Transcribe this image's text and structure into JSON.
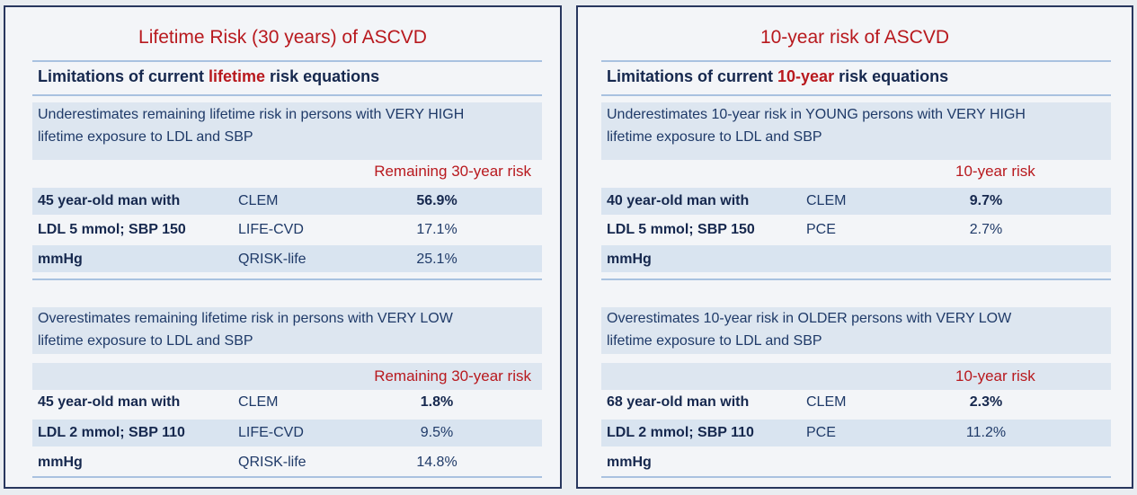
{
  "left": {
    "title": "Lifetime Risk (30 years) of ASCVD",
    "subheading": {
      "pre": "Limitations of current ",
      "highlight": "lifetime",
      "post": " risk equations"
    },
    "section1": {
      "desc_line1": "Underestimates remaining lifetime risk in persons with VERY HIGH",
      "desc_line2": "lifetime exposure to LDL and SBP",
      "col_head": "Remaining 30-year risk",
      "rows": [
        {
          "label": "45 year-old man with",
          "model": "CLEM",
          "value": "56.9%"
        },
        {
          "label": "LDL 5 mmol; SBP 150",
          "model": "LIFE-CVD",
          "value": "17.1%"
        },
        {
          "label": "mmHg",
          "model": "QRISK-life",
          "value": "25.1%"
        }
      ]
    },
    "section2": {
      "desc_line1": "Overestimates remaining lifetime risk in persons with VERY LOW",
      "desc_line2": "lifetime exposure to LDL and SBP",
      "col_head": "Remaining 30-year risk",
      "rows": [
        {
          "label": "45 year-old man with",
          "model": "CLEM",
          "value": "1.8%"
        },
        {
          "label": "LDL 2 mmol; SBP 110",
          "model": "LIFE-CVD",
          "value": "9.5%"
        },
        {
          "label": "mmHg",
          "model": "QRISK-life",
          "value": "14.8%"
        }
      ]
    }
  },
  "right": {
    "title": "10-year risk of ASCVD",
    "subheading": {
      "pre": "Limitations of current ",
      "highlight": "10-year",
      "post": " risk equations"
    },
    "section1": {
      "desc_line1": "Underestimates 10-year risk in YOUNG persons with VERY HIGH",
      "desc_line2": "lifetime exposure to LDL and SBP",
      "col_head": "10-year risk",
      "rows": [
        {
          "label": "40 year-old man with",
          "model": "CLEM",
          "value": "9.7%"
        },
        {
          "label": "LDL 5 mmol; SBP 150",
          "model": "PCE",
          "value": "2.7%"
        },
        {
          "label": "mmHg",
          "model": "",
          "value": ""
        }
      ]
    },
    "section2": {
      "desc_line1": "Overestimates 10-year risk in OLDER persons with VERY LOW",
      "desc_line2": "lifetime exposure to LDL and SBP",
      "col_head": "10-year risk",
      "rows": [
        {
          "label": "68 year-old man with",
          "model": "CLEM",
          "value": "2.3%"
        },
        {
          "label": "LDL 2 mmol; SBP 110",
          "model": "PCE",
          "value": "11.2%"
        },
        {
          "label": "mmHg",
          "model": "",
          "value": ""
        }
      ]
    }
  }
}
